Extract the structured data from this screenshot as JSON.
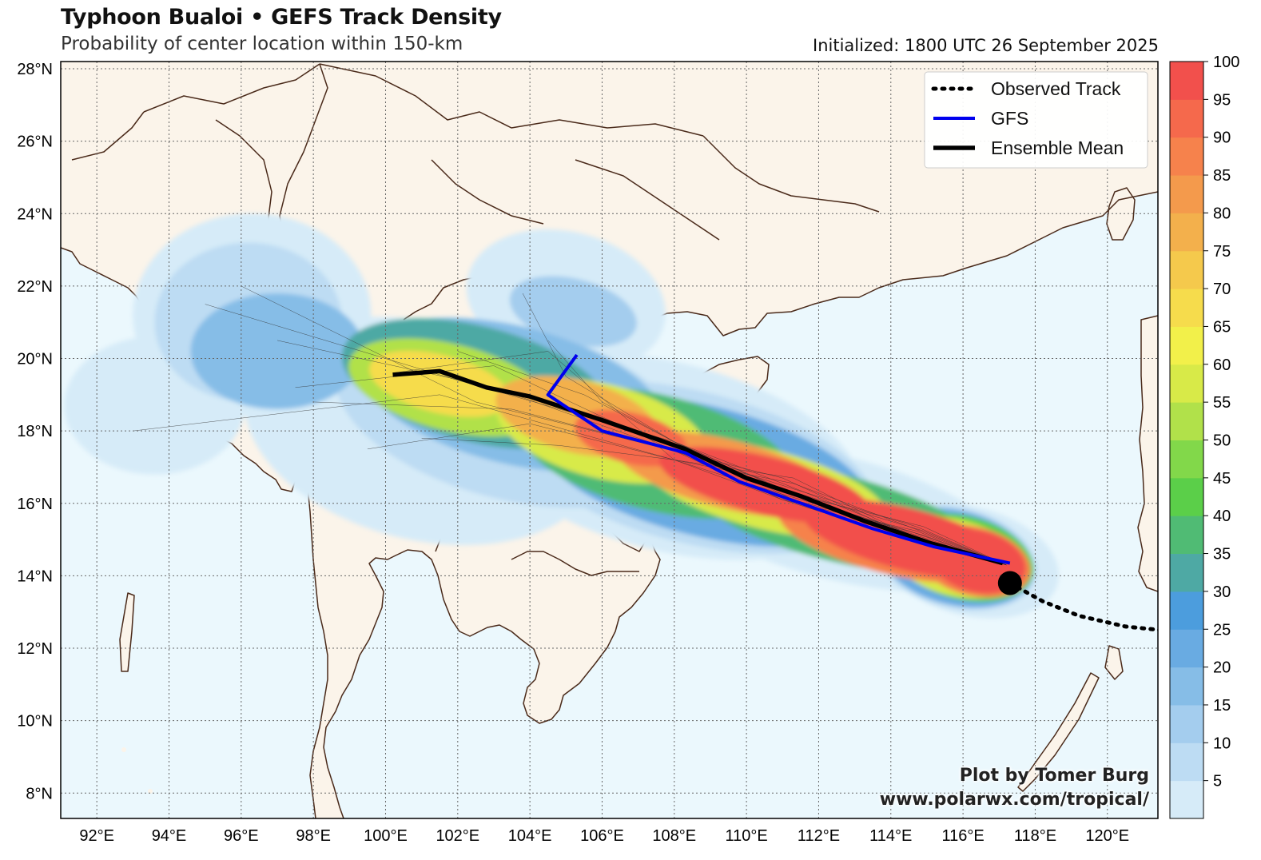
{
  "header": {
    "title": "Typhoon Bualoi • GEFS Track Density",
    "subtitle": "Probability of center location within 150-km",
    "initialized": "Initialized: 1800 UTC 26 September 2025"
  },
  "credit": {
    "line1": "Plot by Tomer Burg",
    "line2": "www.polarwx.com/tropical/"
  },
  "legend": {
    "observed_label": "Observed Track",
    "gfs_label": "GFS",
    "mean_label": "Ensemble Mean"
  },
  "axes": {
    "lon_ticks": [
      "92°E",
      "94°E",
      "96°E",
      "98°E",
      "100°E",
      "102°E",
      "104°E",
      "106°E",
      "108°E",
      "110°E",
      "112°E",
      "114°E",
      "116°E",
      "118°E",
      "120°E"
    ],
    "lat_ticks": [
      "8°N",
      "10°N",
      "12°N",
      "14°N",
      "16°N",
      "18°N",
      "20°N",
      "22°N",
      "24°N",
      "26°N",
      "28°N"
    ]
  },
  "colorbar": {
    "labels": [
      "5",
      "10",
      "15",
      "20",
      "25",
      "30",
      "35",
      "40",
      "45",
      "50",
      "55",
      "60",
      "65",
      "70",
      "75",
      "80",
      "85",
      "90",
      "95",
      "100"
    ],
    "colors": [
      "#d6ebf8",
      "#bddcf3",
      "#a4cdee",
      "#86bde7",
      "#69abe2",
      "#4c9ddd",
      "#4ea9a4",
      "#50bb74",
      "#5bcf49",
      "#82d84a",
      "#b1e14a",
      "#d8ea48",
      "#f2f04a",
      "#f6dc4c",
      "#f5c94c",
      "#f3b04c",
      "#f49a4c",
      "#f6824c",
      "#f5694c",
      "#f2504c"
    ]
  },
  "colors": {
    "ocean": "#ebf8fd",
    "land": "#fbf4ea",
    "border": "#4a2a1a",
    "gfs": "#0000ee",
    "mean": "#000000"
  },
  "tracks": {
    "observed": [
      [
        117.3,
        13.8
      ],
      [
        118.2,
        13.3
      ],
      [
        119.2,
        12.9
      ],
      [
        120.5,
        12.6
      ],
      [
        121.5,
        12.5
      ]
    ],
    "current_position": [
      117.3,
      13.8
    ],
    "gfs": [
      [
        117.3,
        14.35
      ],
      [
        115.2,
        14.8
      ],
      [
        113.5,
        15.3
      ],
      [
        111.8,
        15.9
      ],
      [
        109.8,
        16.6
      ],
      [
        108.3,
        17.4
      ],
      [
        106.0,
        18.0
      ],
      [
        104.5,
        19.0
      ],
      [
        105.3,
        20.1
      ]
    ],
    "ensemble_mean": [
      [
        117.1,
        14.35
      ],
      [
        115.1,
        14.9
      ],
      [
        113.3,
        15.5
      ],
      [
        111.5,
        16.2
      ],
      [
        110.0,
        16.7
      ],
      [
        108.3,
        17.5
      ],
      [
        106.0,
        18.3
      ],
      [
        104.0,
        18.95
      ],
      [
        102.8,
        19.2
      ],
      [
        101.5,
        19.65
      ],
      [
        100.2,
        19.55
      ]
    ]
  }
}
